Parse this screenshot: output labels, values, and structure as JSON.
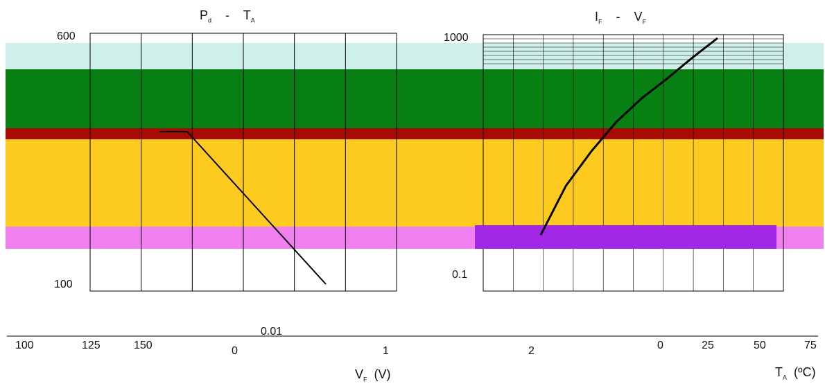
{
  "colors": {
    "band_cyan": "#cff0ea",
    "band_green": "#087f12",
    "band_red": "#a80b05",
    "band_yellow": "#fdcb20",
    "band_pink": "#f07ff0",
    "band_purple": "#a327e6",
    "curve": "#000000"
  },
  "chart_data": [
    {
      "type": "line",
      "title": "Pd - TA",
      "title_main": "P",
      "title_sub": "d",
      "title_sep": "-",
      "title_main2": "T",
      "title_sub2": "A",
      "xlabel_main": "T",
      "xlabel_sub": "A",
      "xlabel_unit": "(ºC)",
      "x_ticks": [
        "0",
        "25",
        "50",
        "75",
        "100",
        "125",
        "150"
      ],
      "y_ticks": [
        "600",
        "100"
      ],
      "xlim": [
        0,
        150
      ],
      "series": [
        {
          "x": [
            0,
            25,
            50,
            75,
            100,
            125,
            150
          ],
          "y": [
            600,
            600,
            500,
            400,
            300,
            200,
            100
          ]
        }
      ]
    },
    {
      "type": "line",
      "title": "IF - VF",
      "title_main": "I",
      "title_sub": "F",
      "title_sep": "-",
      "title_main2": "V",
      "title_sub2": "F",
      "xlabel_main": "V",
      "xlabel_sub": "F",
      "xlabel_unit": "(V)",
      "x_ticks": [
        "0",
        "1",
        "2"
      ],
      "y_ticks": [
        "1000",
        "0.1",
        "0.01"
      ],
      "xlim": [
        0,
        2
      ],
      "ylim": [
        0.01,
        1000
      ],
      "yscale": "log",
      "series": [
        {
          "x": [
            0.9,
            1.0,
            1.1,
            1.2,
            1.3,
            1.4,
            1.5,
            1.6
          ],
          "y": [
            0.1,
            1,
            5,
            20,
            60,
            150,
            400,
            1000
          ]
        }
      ]
    }
  ]
}
